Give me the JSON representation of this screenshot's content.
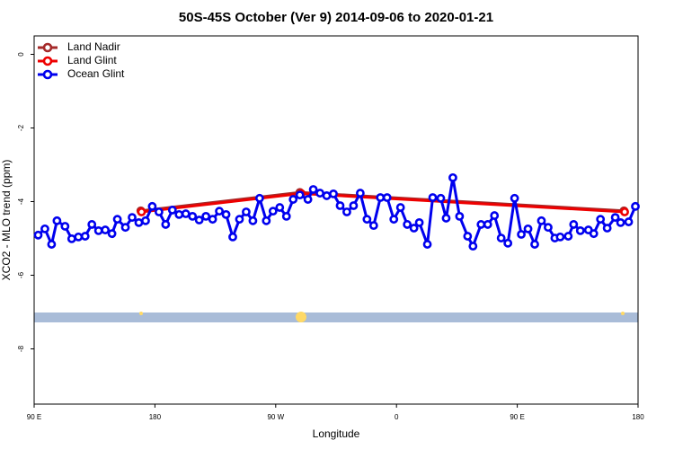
{
  "chart_data": {
    "type": "line",
    "title": "50S-45S October (Ver 9)   2014-09-06 to 2020-01-21",
    "x_label": "Longitude",
    "y_label": "XCO2 - MLO trend (ppm)",
    "xlim": [
      90,
      540
    ],
    "xticks": [
      {
        "value": 90,
        "label": "90 E"
      },
      180,
      {
        "value": 270,
        "label": "90 W"
      },
      {
        "value": 360,
        "label": "0"
      },
      {
        "value": 450,
        "label": "90 E"
      },
      {
        "value": 540,
        "label": "180"
      }
    ],
    "ylim": [
      -9.5,
      0.5
    ],
    "yticks": [
      0,
      -2,
      -4,
      -6,
      -8
    ],
    "legend": "top-left",
    "series": [
      {
        "name": "Land Nadir",
        "color": "#a52a2a",
        "x": [
          169.5,
          288,
          529.5
        ],
        "values": [
          -4.25,
          -3.75,
          -4.25
        ]
      },
      {
        "name": "Land Glint",
        "color": "#ee0000",
        "x": [
          170,
          289,
          530
        ],
        "values": [
          -4.28,
          -3.78,
          -4.28
        ]
      },
      {
        "name": "Ocean Glint",
        "color": "#0000ee",
        "x": [
          93,
          98,
          103,
          107,
          113,
          118,
          123,
          128,
          133,
          138,
          143,
          148,
          152,
          158,
          163,
          168,
          173,
          178,
          183,
          188,
          193,
          198,
          203,
          208,
          213,
          218,
          223,
          228,
          233,
          238,
          243,
          248,
          253,
          258,
          263,
          268,
          273,
          278,
          283,
          288,
          294,
          298,
          303,
          308,
          313,
          318,
          323,
          328,
          333,
          338,
          343,
          348,
          353,
          358,
          363,
          368,
          373,
          377,
          383,
          387,
          393,
          397,
          402,
          407,
          413,
          417,
          423,
          428,
          433,
          438,
          443,
          448,
          453,
          458,
          463,
          468,
          473,
          478,
          482,
          488,
          492,
          497,
          503,
          507,
          512,
          517,
          523,
          527,
          533,
          538
        ],
        "values": [
          -4.91,
          -4.74,
          -5.16,
          -4.52,
          -4.67,
          -5.01,
          -4.96,
          -4.94,
          -4.62,
          -4.79,
          -4.77,
          -4.87,
          -4.48,
          -4.7,
          -4.43,
          -4.57,
          -4.52,
          -4.13,
          -4.28,
          -4.62,
          -4.23,
          -4.35,
          -4.33,
          -4.4,
          -4.5,
          -4.4,
          -4.48,
          -4.26,
          -4.35,
          -4.96,
          -4.48,
          -4.28,
          -4.52,
          -3.91,
          -4.52,
          -4.26,
          -4.16,
          -4.4,
          -3.94,
          -3.82,
          -3.94,
          -3.67,
          -3.77,
          -3.84,
          -3.79,
          -4.11,
          -4.28,
          -4.11,
          -3.77,
          -4.48,
          -4.65,
          -3.89,
          -3.89,
          -4.48,
          -4.16,
          -4.62,
          -4.72,
          -4.57,
          -5.16,
          -3.89,
          -3.91,
          -4.45,
          -3.35,
          -4.4,
          -4.94,
          -5.21,
          -4.62,
          -4.62,
          -4.38,
          -4.99,
          -5.13,
          -3.91,
          -4.89,
          -4.74,
          -5.16,
          -4.52,
          -4.7,
          -4.99,
          -4.96,
          -4.94,
          -4.62,
          -4.79,
          -4.77,
          -4.87,
          -4.48,
          -4.72,
          -4.43,
          -4.57,
          -4.55,
          -4.13
        ]
      }
    ]
  }
}
